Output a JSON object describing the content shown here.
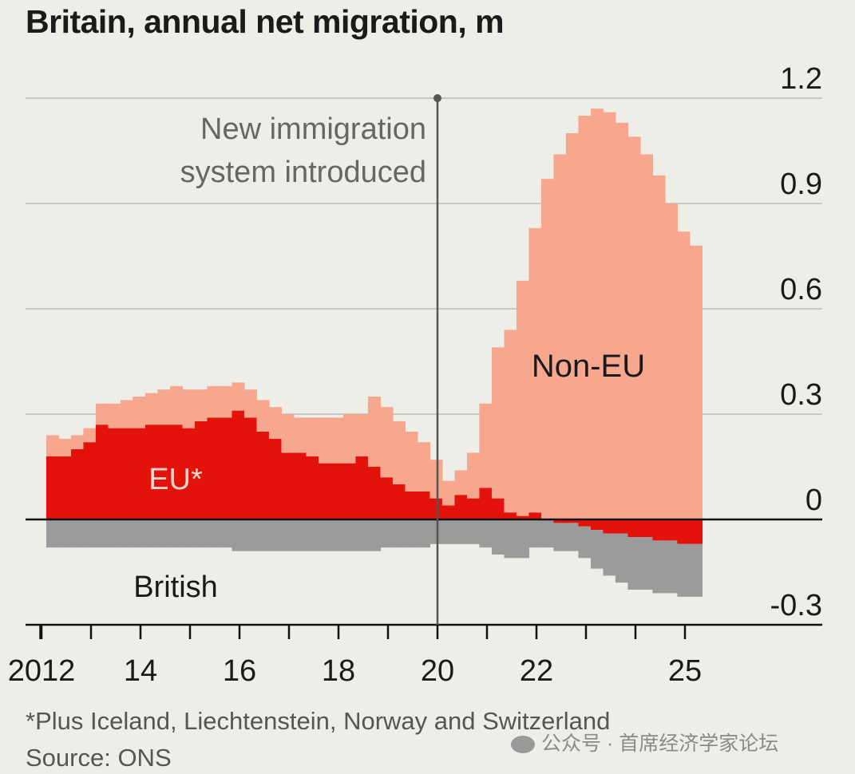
{
  "chart_data": {
    "type": "bar",
    "stacked": true,
    "title": "Britain, annual net migration, m",
    "ylim": [
      -0.3,
      1.2
    ],
    "yticks": [
      -0.3,
      0,
      0.3,
      0.6,
      0.9,
      1.2
    ],
    "ytick_labels": [
      "-0.3",
      "0",
      "0.3",
      "0.6",
      "0.9",
      "1.2"
    ],
    "y_axis_position": "right",
    "grid": true,
    "x": [
      2012.0,
      2012.25,
      2012.5,
      2012.75,
      2013.0,
      2013.25,
      2013.5,
      2013.75,
      2014.0,
      2014.25,
      2014.5,
      2014.75,
      2015.0,
      2015.25,
      2015.5,
      2015.75,
      2016.0,
      2016.25,
      2016.5,
      2016.75,
      2017.0,
      2017.25,
      2017.5,
      2017.75,
      2018.0,
      2018.25,
      2018.5,
      2018.75,
      2019.0,
      2019.25,
      2019.5,
      2019.75,
      2020.0,
      2020.25,
      2020.5,
      2020.75,
      2021.0,
      2021.25,
      2021.5,
      2021.75,
      2022.0,
      2022.25,
      2022.5,
      2022.75,
      2023.0,
      2023.25,
      2023.5,
      2023.75,
      2024.0,
      2024.25,
      2024.5,
      2024.75,
      2025.0
    ],
    "xtick_labels": [
      {
        "x": 2012,
        "label": "2012"
      },
      {
        "x": 2014,
        "label": "14"
      },
      {
        "x": 2016,
        "label": "16"
      },
      {
        "x": 2018,
        "label": "18"
      },
      {
        "x": 2020,
        "label": "20"
      },
      {
        "x": 2022,
        "label": "22"
      },
      {
        "x": 2025,
        "label": "25"
      }
    ],
    "series": [
      {
        "name": "EU*",
        "color": "#e3120b",
        "values": [
          0.18,
          0.18,
          0.2,
          0.22,
          0.27,
          0.26,
          0.26,
          0.26,
          0.27,
          0.27,
          0.27,
          0.26,
          0.28,
          0.29,
          0.29,
          0.31,
          0.29,
          0.25,
          0.23,
          0.19,
          0.19,
          0.18,
          0.16,
          0.16,
          0.16,
          0.18,
          0.15,
          0.12,
          0.1,
          0.08,
          0.08,
          0.06,
          0.04,
          0.07,
          0.06,
          0.09,
          0.06,
          0.02,
          0.01,
          0.02,
          0.0,
          -0.01,
          -0.01,
          -0.02,
          -0.03,
          -0.04,
          -0.04,
          -0.05,
          -0.05,
          -0.06,
          -0.06,
          -0.07,
          -0.07
        ]
      },
      {
        "name": "Non-EU",
        "color": "#f6a78e",
        "values": [
          0.06,
          0.05,
          0.04,
          0.04,
          0.06,
          0.07,
          0.08,
          0.09,
          0.09,
          0.1,
          0.11,
          0.11,
          0.09,
          0.09,
          0.09,
          0.08,
          0.08,
          0.09,
          0.09,
          0.11,
          0.1,
          0.11,
          0.13,
          0.13,
          0.14,
          0.12,
          0.2,
          0.2,
          0.18,
          0.17,
          0.14,
          0.11,
          0.07,
          0.07,
          0.13,
          0.24,
          0.43,
          0.52,
          0.67,
          0.81,
          0.97,
          1.04,
          1.1,
          1.15,
          1.17,
          1.16,
          1.13,
          1.09,
          1.04,
          0.98,
          0.9,
          0.82,
          0.78
        ]
      },
      {
        "name": "British",
        "color": "#9b9b9b",
        "values": [
          -0.08,
          -0.08,
          -0.08,
          -0.08,
          -0.08,
          -0.08,
          -0.08,
          -0.08,
          -0.08,
          -0.08,
          -0.08,
          -0.08,
          -0.08,
          -0.08,
          -0.08,
          -0.09,
          -0.09,
          -0.09,
          -0.09,
          -0.09,
          -0.09,
          -0.09,
          -0.09,
          -0.09,
          -0.09,
          -0.09,
          -0.09,
          -0.08,
          -0.08,
          -0.08,
          -0.08,
          -0.07,
          -0.07,
          -0.07,
          -0.07,
          -0.08,
          -0.1,
          -0.11,
          -0.11,
          -0.08,
          -0.08,
          -0.08,
          -0.08,
          -0.09,
          -0.11,
          -0.12,
          -0.14,
          -0.15,
          -0.15,
          -0.15,
          -0.15,
          -0.15,
          -0.15
        ]
      }
    ],
    "labels": {
      "eu": "EU*",
      "non_eu": "Non-EU",
      "british": "British"
    },
    "annotation": {
      "x": 2020.0,
      "line1": "New immigration",
      "line2": "system introduced"
    }
  },
  "footnote": "*Plus Iceland, Liechtenstein, Norway and Switzerland",
  "source": "Source: ONS",
  "watermark": "公众号 · 首席经济学家论坛"
}
